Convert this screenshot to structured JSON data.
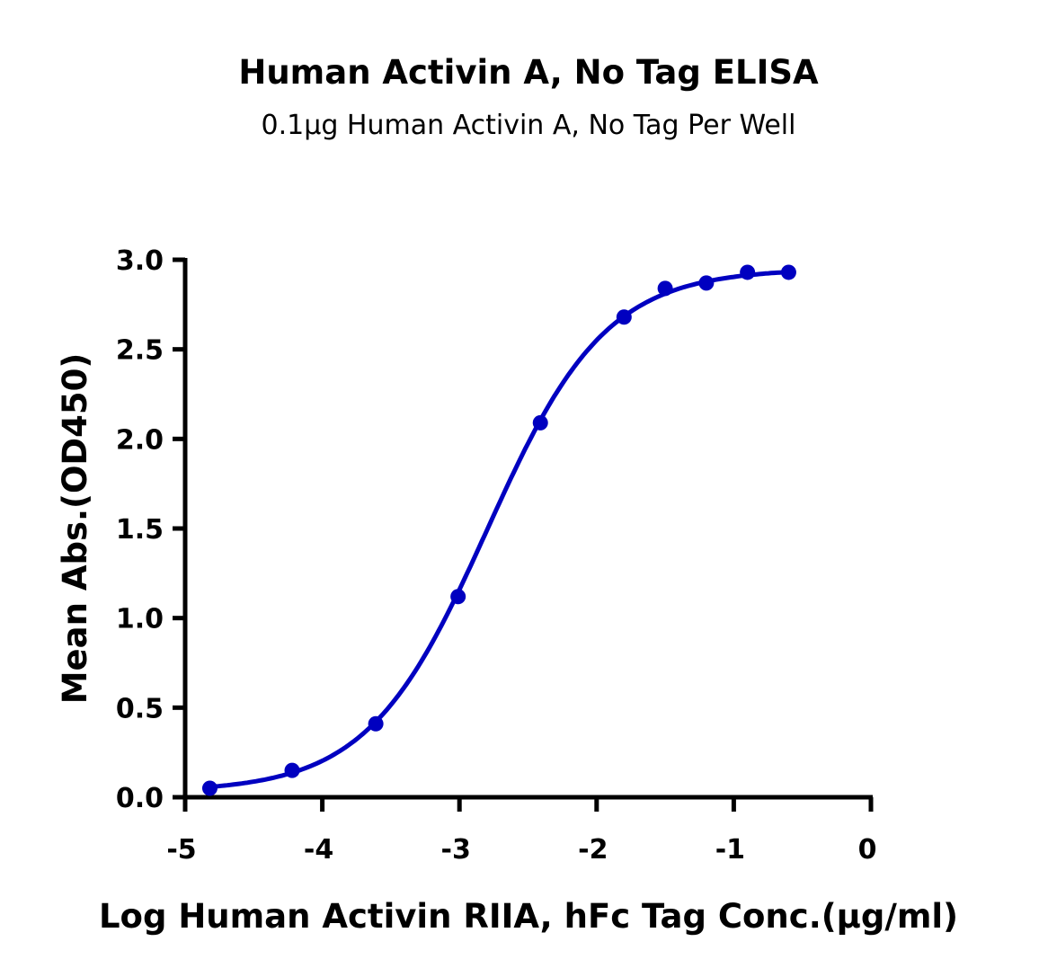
{
  "chart_data": {
    "type": "line",
    "title": "Human Activin A, No Tag ELISA",
    "subtitle": "0.1μg Human Activin A, No Tag Per Well",
    "xlabel": "Log Human Activin RIIA, hFc  Tag Conc.(μg/ml)",
    "ylabel": "Mean Abs.(OD450)",
    "xlim": [
      -5,
      0
    ],
    "ylim": [
      0,
      3.0
    ],
    "xticks": [
      "-5",
      "-4",
      "-3",
      "-2",
      "-1",
      "0"
    ],
    "yticks": [
      "0.0",
      "0.5",
      "1.0",
      "1.5",
      "2.0",
      "2.5",
      "3.0"
    ],
    "grid": false,
    "color": "#0000C0",
    "series": [
      {
        "x": [
          -4.82,
          -4.22,
          -3.61,
          -3.01,
          -2.41,
          -1.8,
          -1.5,
          -1.2,
          -0.9,
          -0.6
        ],
        "y": [
          0.05,
          0.15,
          0.41,
          1.12,
          2.09,
          2.68,
          2.84,
          2.87,
          2.93,
          2.93
        ]
      }
    ]
  }
}
